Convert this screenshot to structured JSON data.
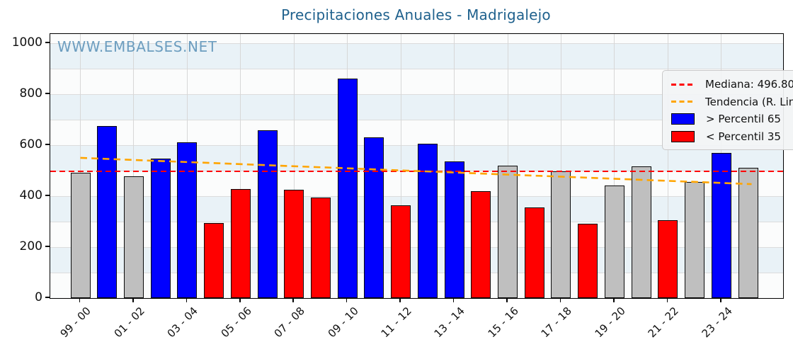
{
  "chart_data": {
    "type": "bar",
    "title": "Precipitaciones Anuales - Madrigalejo",
    "watermark": "WWW.EMBALSES.NET",
    "xlabel": "",
    "ylabel": "",
    "ylim": [
      0,
      1036
    ],
    "yticks": [
      0,
      200,
      400,
      600,
      800,
      1000
    ],
    "grid": true,
    "legend_position": "upper right",
    "xtick_labels": [
      "99 - 00",
      "01 - 02",
      "03 - 04",
      "05 - 06",
      "07 - 08",
      "09 - 10",
      "11 - 12",
      "13 - 14",
      "15 - 16",
      "17 - 18",
      "19 - 20",
      "21 - 22",
      "23 - 24"
    ],
    "xtick_bar_indices": [
      0,
      2,
      4,
      6,
      8,
      10,
      12,
      14,
      16,
      18,
      20,
      22,
      24
    ],
    "bars": [
      {
        "value": 491,
        "category": "mid"
      },
      {
        "value": 676,
        "category": "p65"
      },
      {
        "value": 477,
        "category": "mid"
      },
      {
        "value": 546,
        "category": "p65"
      },
      {
        "value": 611,
        "category": "p65"
      },
      {
        "value": 294,
        "category": "p35"
      },
      {
        "value": 428,
        "category": "p35"
      },
      {
        "value": 658,
        "category": "p65"
      },
      {
        "value": 424,
        "category": "p35"
      },
      {
        "value": 394,
        "category": "p35"
      },
      {
        "value": 862,
        "category": "p65"
      },
      {
        "value": 631,
        "category": "p65"
      },
      {
        "value": 364,
        "category": "p35"
      },
      {
        "value": 605,
        "category": "p65"
      },
      {
        "value": 535,
        "category": "p65"
      },
      {
        "value": 419,
        "category": "p35"
      },
      {
        "value": 519,
        "category": "mid"
      },
      {
        "value": 355,
        "category": "p35"
      },
      {
        "value": 498,
        "category": "mid"
      },
      {
        "value": 292,
        "category": "p35"
      },
      {
        "value": 442,
        "category": "mid"
      },
      {
        "value": 516,
        "category": "mid"
      },
      {
        "value": 306,
        "category": "p35"
      },
      {
        "value": 456,
        "category": "mid"
      },
      {
        "value": 569,
        "category": "p65"
      },
      {
        "value": 511,
        "category": "mid"
      }
    ],
    "median": {
      "value": 496.8,
      "label": "Mediana: 496.80"
    },
    "trend": {
      "label": "Tendencia (R. Lineal)",
      "start_value": 550,
      "end_value": 447
    },
    "legend": [
      {
        "key": "median",
        "label": "Mediana: 496.80",
        "swatch": "dashes",
        "color": "#ff0000"
      },
      {
        "key": "trend",
        "label": "Tendencia (R. Lineal)",
        "swatch": "dashes",
        "color": "#ffa500"
      },
      {
        "key": "p65",
        "label": "> Percentil 65",
        "swatch": "patch",
        "color": "#0000ff"
      },
      {
        "key": "p35",
        "label": "< Percentil 35",
        "swatch": "patch",
        "color": "#ff0000"
      }
    ],
    "bands": [
      [
        100,
        200
      ],
      [
        300,
        400
      ],
      [
        500,
        600
      ],
      [
        700,
        800
      ],
      [
        900,
        1000
      ]
    ],
    "colors": {
      "p65": "#0000ff",
      "p35": "#ff0000",
      "mid": "#bfbfbf",
      "median_line": "#ff0000",
      "trend_line": "#ffa500",
      "band": "#e9f2f7",
      "title": "#1f618d",
      "watermark": "#4d89b2"
    }
  }
}
